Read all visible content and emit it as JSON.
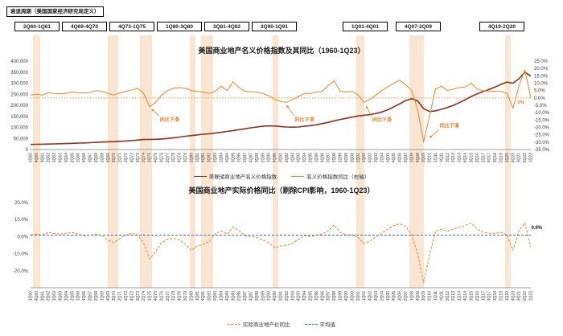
{
  "header": {
    "recession_label": "衰退周期（美国国家经济研究局定义）",
    "periods": [
      "2Q60-1Q61",
      "4Q69-4Q70",
      "4Q73-1Q75",
      "1Q80-3Q80",
      "3Q81-4Q82",
      "3Q90-1Q91",
      "1Q01-4Q01",
      "4Q07-2Q09",
      "4Q19-2Q20"
    ]
  },
  "colors": {
    "index_line": "#8B3220",
    "yoy_line": "#E8872B",
    "avg_line": "#4472C4",
    "band": "#F8E6D2",
    "text_dark": "#1a1a1a"
  },
  "chart_data": [
    {
      "type": "line",
      "title": "美国商业地产名义价格指数及其同比（1960-1Q23）",
      "legend_position": "bottom",
      "x_labels": [
        "1Q60",
        "4Q60",
        "3Q61",
        "2Q62",
        "1Q63",
        "4Q63",
        "3Q64",
        "2Q65",
        "1Q66",
        "4Q66",
        "3Q67",
        "2Q68",
        "1Q69",
        "4Q69",
        "3Q70",
        "2Q71",
        "1Q72",
        "4Q72",
        "3Q73",
        "2Q74",
        "1Q75",
        "4Q75",
        "3Q76",
        "2Q77",
        "1Q78",
        "4Q78",
        "3Q79",
        "2Q80",
        "1Q81",
        "4Q81",
        "3Q82",
        "2Q83",
        "1Q84",
        "4Q84",
        "3Q85",
        "2Q86",
        "1Q87",
        "4Q87",
        "3Q88",
        "2Q89",
        "1Q90",
        "4Q90",
        "3Q91",
        "2Q92",
        "1Q93",
        "4Q93",
        "3Q94",
        "2Q95",
        "1Q96",
        "4Q96",
        "3Q97",
        "2Q98",
        "1Q99",
        "4Q99",
        "3Q00",
        "2Q01",
        "1Q02",
        "4Q02",
        "3Q03",
        "2Q04",
        "1Q05",
        "4Q05",
        "3Q06",
        "2Q07",
        "1Q08",
        "4Q08",
        "3Q09",
        "2Q10",
        "1Q11",
        "4Q11",
        "3Q12",
        "2Q13",
        "1Q14",
        "4Q14",
        "3Q15",
        "2Q16",
        "1Q17",
        "4Q17",
        "3Q18",
        "2Q19",
        "1Q20",
        "4Q20",
        "3Q21",
        "2Q22",
        "1Q23"
      ],
      "left_axis": {
        "min": 0,
        "max": 400000,
        "tick_values": [
          400000,
          350000,
          300000,
          250000,
          200000,
          150000,
          100000,
          50000,
          0
        ],
        "ticks": [
          "400,000",
          "350,000",
          "300,000",
          "250,000",
          "200,000",
          "150,000",
          "100,000",
          "50,000",
          "0"
        ]
      },
      "right_axis": {
        "min": -35,
        "max": 25,
        "tick_values": [
          25,
          20,
          15,
          10,
          5,
          0,
          -5,
          -10,
          -15,
          -20,
          -25,
          -30,
          -35
        ],
        "ticks": [
          "25.0%",
          "20.0%",
          "15.0%",
          "10.0%",
          "5.0%",
          "0.0%",
          "-5.0%",
          "-10.0%",
          "-15.0%",
          "-20.0%",
          "-25.0%",
          "-30.0%",
          "-35.0%"
        ]
      },
      "zero_line": {
        "axis": "right",
        "value": 0,
        "color_key": "yoy_line"
      },
      "series": [
        {
          "name": "美联储商业地产名义价格指数",
          "axis": "left",
          "style": "solid",
          "width": 1.6,
          "color_key": "index_line",
          "values": [
            23000,
            23500,
            24000,
            24800,
            25500,
            26200,
            27000,
            28000,
            29000,
            30000,
            31000,
            32500,
            34000,
            35000,
            35800,
            37000,
            38500,
            40500,
            43000,
            45000,
            45500,
            46000,
            47500,
            50000,
            53000,
            56500,
            60000,
            63000,
            66000,
            69000,
            71000,
            74000,
            78000,
            82000,
            86000,
            90000,
            94000,
            98000,
            102000,
            105000,
            107000,
            106000,
            104000,
            102000,
            101000,
            102000,
            105000,
            108000,
            112000,
            117000,
            123000,
            130000,
            136000,
            141000,
            147000,
            152000,
            155000,
            158000,
            163000,
            170000,
            180000,
            193000,
            207000,
            222000,
            230000,
            220000,
            185000,
            172000,
            175000,
            182000,
            190000,
            200000,
            212000,
            225000,
            240000,
            252000,
            262000,
            272000,
            283000,
            295000,
            305000,
            300000,
            320000,
            350000,
            332000
          ]
        },
        {
          "name": "名义价格指数同比（右轴）",
          "axis": "right",
          "style": "solid",
          "width": 1,
          "color_key": "yoy_line",
          "end_label": {
            "text": "0%",
            "q": 247,
            "v": -4
          },
          "values": [
            2.0,
            2.5,
            2.0,
            3.5,
            3.0,
            2.8,
            3.2,
            4.0,
            3.5,
            3.4,
            3.6,
            5.0,
            4.5,
            3.0,
            2.0,
            3.5,
            4.5,
            5.5,
            6.5,
            3.0,
            -6.0,
            -3.0,
            2.0,
            5.0,
            6.5,
            7.0,
            6.5,
            5.0,
            4.5,
            4.0,
            3.0,
            4.5,
            8.0,
            5.0,
            11.0,
            7.0,
            4.5,
            4.2,
            4.0,
            3.0,
            1.5,
            -1.0,
            -2.5,
            -3.0,
            -1.0,
            1.0,
            3.0,
            3.0,
            4.0,
            4.5,
            8.5,
            11.5,
            4.5,
            4.0,
            4.5,
            2.0,
            -3.0,
            -1.0,
            2.0,
            5.0,
            7.5,
            10.0,
            12.0,
            9.0,
            5.0,
            -8.0,
            -30.0,
            -12.0,
            6.0,
            8.0,
            5.0,
            6.0,
            7.0,
            7.5,
            10.0,
            6.0,
            5.0,
            4.5,
            4.5,
            4.5,
            3.0,
            -7.0,
            8.0,
            19.0,
            0.0
          ]
        }
      ],
      "annotations": [
        {
          "text": "同比下滑",
          "text_q": 70,
          "text_v": -16,
          "point_q": 61,
          "point_v": -7.5
        },
        {
          "text": "同比下滑",
          "text_q": 138,
          "text_v": -16,
          "point_q": 129,
          "point_v": -5
        },
        {
          "text": "同比下滑",
          "text_q": 177,
          "text_v": -16,
          "point_q": 169,
          "point_v": -5.5
        },
        {
          "text": "同比下滑",
          "text_q": 211,
          "text_v": -20,
          "point_q": 201,
          "point_v": -27
        }
      ]
    },
    {
      "type": "line",
      "title": "美国商业地产实际价格同比（剔除CPI影响，1960-1Q23）",
      "legend_position": "bottom",
      "x_labels_same_as": 0,
      "y_axis": {
        "min": -30,
        "max": 20,
        "tick_values": [
          20,
          10,
          0,
          -10,
          -20
        ],
        "ticks": [
          "20.0%",
          "10.0%",
          "0.0%",
          "-10.0%",
          "-20.0%"
        ]
      },
      "series": [
        {
          "name": "实际商业地产价同比",
          "style": "dashed",
          "width": 1,
          "color_key": "yoy_line",
          "values": [
            1.0,
            1.5,
            1.0,
            2.5,
            1.8,
            1.5,
            2.0,
            2.5,
            1.5,
            0.5,
            0.8,
            1.5,
            0.5,
            -2.0,
            -3.5,
            -1.0,
            1.0,
            2.0,
            1.0,
            -4.0,
            -13.0,
            -9.0,
            -3.5,
            -1.5,
            -1.0,
            -2.0,
            -4.5,
            -8.0,
            -5.5,
            -4.5,
            -3.0,
            1.5,
            3.5,
            1.5,
            5.5,
            3.5,
            0.5,
            0.0,
            -0.5,
            -2.0,
            -3.5,
            -6.5,
            -5.5,
            -5.0,
            -4.0,
            -1.5,
            0.5,
            0.0,
            1.0,
            1.5,
            3.5,
            7.0,
            2.5,
            1.0,
            1.0,
            -0.5,
            -4.0,
            -2.5,
            0.0,
            2.0,
            4.5,
            6.5,
            7.5,
            6.0,
            1.0,
            -10.0,
            -27.0,
            -11.0,
            3.0,
            4.5,
            3.0,
            4.5,
            5.5,
            6.5,
            8.0,
            4.5,
            2.5,
            2.0,
            2.0,
            2.5,
            1.0,
            -8.0,
            3.5,
            8.0,
            -6.0
          ]
        },
        {
          "name": "平均值",
          "style": "dashed",
          "width": 1,
          "color_key": "avg_line",
          "value": 0.9
        }
      ],
      "annotations": [
        {
          "text": "0.9%",
          "text_q": 255,
          "text_v": 4.5,
          "color_key": "text_dark"
        }
      ]
    }
  ]
}
